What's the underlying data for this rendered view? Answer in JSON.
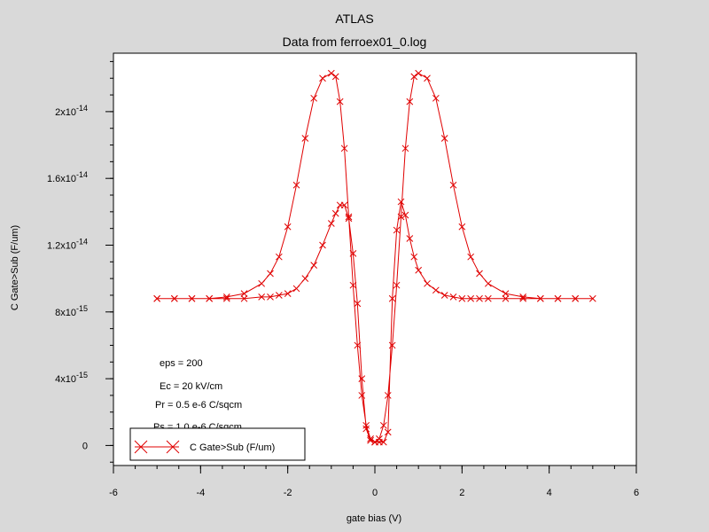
{
  "chart_data": {
    "type": "line",
    "title": "ATLAS",
    "subtitle": "Data from ferroex01_0.log",
    "xlabel": "gate bias (V)",
    "ylabel": "C Gate>Sub (F/um)",
    "xlim": [
      -6,
      6
    ],
    "ylim": [
      -1.2e-15,
      2.35e-14
    ],
    "x_ticks": [
      {
        "v": -6,
        "label": "-6"
      },
      {
        "v": -4,
        "label": "-4"
      },
      {
        "v": -2,
        "label": "-2"
      },
      {
        "v": 0,
        "label": "0"
      },
      {
        "v": 2,
        "label": "2"
      },
      {
        "v": 4,
        "label": "4"
      },
      {
        "v": 6,
        "label": "6"
      }
    ],
    "y_ticks": [
      {
        "v": 0,
        "mant": "0",
        "exp": ""
      },
      {
        "v": 4e-15,
        "mant": "4x10",
        "exp": "-15"
      },
      {
        "v": 8e-15,
        "mant": "8x10",
        "exp": "-15"
      },
      {
        "v": 1.2e-14,
        "mant": "1.2x10",
        "exp": "-14"
      },
      {
        "v": 1.6e-14,
        "mant": "1.6x10",
        "exp": "-14"
      },
      {
        "v": 2e-14,
        "mant": "2x10",
        "exp": "-14"
      }
    ],
    "grid": false,
    "legend_position": "bottom-left",
    "color": "#e00000",
    "annotations": [
      "eps = 200",
      "Ec = 20 kV/cm",
      "Pr = 0.5 e-6 C/sqcm",
      "Ps = 1.0 e-6 C/sqcm"
    ],
    "series": [
      {
        "name": "C Gate>Sub (F/um)",
        "x": [
          -5.0,
          -4.6,
          -4.2,
          -3.8,
          -3.4,
          -3.0,
          -2.6,
          -2.4,
          -2.2,
          -2.0,
          -1.8,
          -1.6,
          -1.4,
          -1.2,
          -1.0,
          -0.9,
          -0.8,
          -0.7,
          -0.6,
          -0.5,
          -0.4,
          -0.3,
          -0.2,
          -0.1,
          0.0,
          0.1,
          0.2,
          0.3,
          0.4,
          0.5,
          0.6,
          0.7,
          0.8,
          0.9,
          1.0,
          1.2,
          1.4,
          1.6,
          1.8,
          2.0,
          2.2,
          2.4,
          2.6,
          3.0,
          3.4,
          3.8,
          4.2,
          4.6,
          5.0,
          4.6,
          4.2,
          3.8,
          3.4,
          3.0,
          2.6,
          2.4,
          2.2,
          2.0,
          1.8,
          1.6,
          1.4,
          1.2,
          1.0,
          0.9,
          0.8,
          0.7,
          0.6,
          0.5,
          0.4,
          0.3,
          0.2,
          0.1,
          0.0,
          -0.1,
          -0.2,
          -0.3,
          -0.4,
          -0.5,
          -0.6,
          -0.7,
          -0.8,
          -0.9,
          -1.0,
          -1.2,
          -1.4,
          -1.6,
          -1.8,
          -2.0,
          -2.2,
          -2.4,
          -2.6,
          -3.0,
          -3.4,
          -3.8,
          -4.2,
          -4.6,
          -5.0
        ],
        "y": [
          8.8e-15,
          8.8e-15,
          8.8e-15,
          8.8e-15,
          8.8e-15,
          8.8e-15,
          8.9e-15,
          8.9e-15,
          9e-15,
          9.1e-15,
          9.4e-15,
          1e-14,
          1.08e-14,
          1.2e-14,
          1.33e-14,
          1.39e-14,
          1.44e-14,
          1.44e-14,
          1.36e-14,
          1.15e-14,
          8.5e-15,
          4e-15,
          1e-15,
          3e-16,
          2e-16,
          2e-16,
          2e-16,
          8e-16,
          8.8e-15,
          1.29e-14,
          1.46e-14,
          1.38e-14,
          1.24e-14,
          1.13e-14,
          1.05e-14,
          9.7e-15,
          9.3e-15,
          9e-15,
          8.9e-15,
          8.8e-15,
          8.8e-15,
          8.8e-15,
          8.8e-15,
          8.8e-15,
          8.8e-15,
          8.8e-15,
          8.8e-15,
          8.8e-15,
          8.8e-15,
          8.8e-15,
          8.8e-15,
          8.8e-15,
          8.9e-15,
          9.1e-15,
          9.7e-15,
          1.03e-14,
          1.13e-14,
          1.31e-14,
          1.56e-14,
          1.84e-14,
          2.08e-14,
          2.2e-14,
          2.23e-14,
          2.21e-14,
          2.06e-14,
          1.78e-14,
          1.37e-14,
          9.6e-15,
          6e-15,
          3e-15,
          1.2e-15,
          4e-16,
          2e-16,
          4e-16,
          1.2e-15,
          3e-15,
          6e-15,
          9.6e-15,
          1.37e-14,
          1.78e-14,
          2.06e-14,
          2.21e-14,
          2.23e-14,
          2.2e-14,
          2.08e-14,
          1.84e-14,
          1.56e-14,
          1.31e-14,
          1.13e-14,
          1.03e-14,
          9.7e-15,
          9.1e-15,
          8.9e-15,
          8.8e-15,
          8.8e-15,
          8.8e-15,
          8.8e-15
        ]
      }
    ]
  }
}
